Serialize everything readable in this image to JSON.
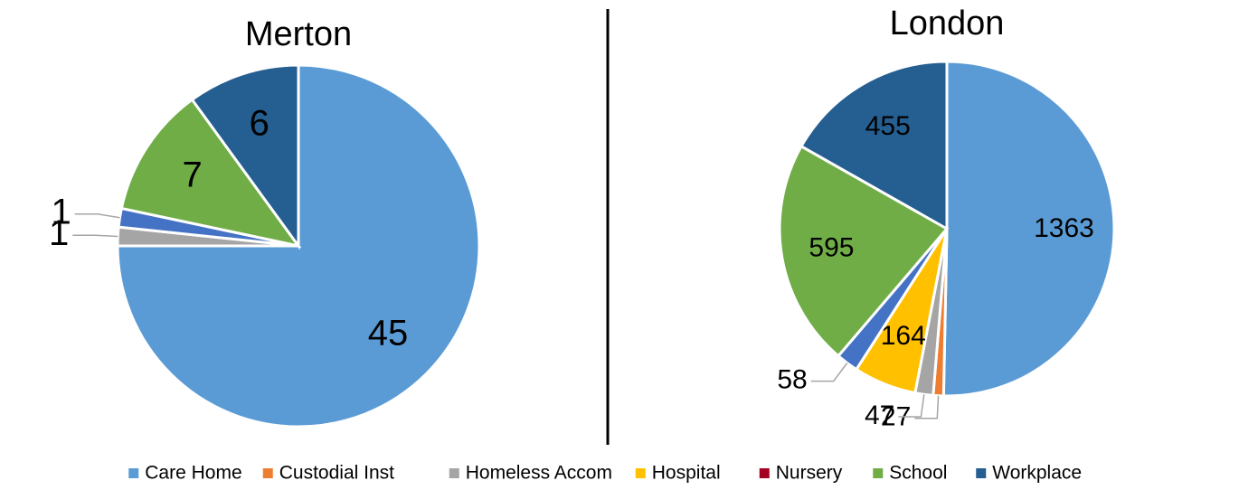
{
  "chart_data": [
    {
      "type": "pie",
      "title": "Merton",
      "categories": [
        "Care Home",
        "Custodial Inst",
        "Homeless Accom",
        "Hospital",
        "Nursery",
        null,
        "School",
        "Workplace"
      ],
      "colors": [
        "#5b9bd5",
        "#ed7d31",
        "#a5a5a5",
        "#ffc000",
        "#a50021",
        "#4472c4",
        "#70ad47",
        "#255e91"
      ],
      "values": [
        45,
        0,
        1,
        0,
        0,
        1,
        7,
        6
      ]
    },
    {
      "type": "pie",
      "title": "London",
      "categories": [
        "Care Home",
        "Custodial Inst",
        "Homeless Accom",
        "Hospital",
        "Nursery",
        null,
        "School",
        "Workplace"
      ],
      "colors": [
        "#5b9bd5",
        "#ed7d31",
        "#a5a5a5",
        "#ffc000",
        "#a50021",
        "#4472c4",
        "#70ad47",
        "#255e91"
      ],
      "values": [
        1363,
        27,
        47,
        164,
        0,
        58,
        595,
        455
      ]
    }
  ]
}
